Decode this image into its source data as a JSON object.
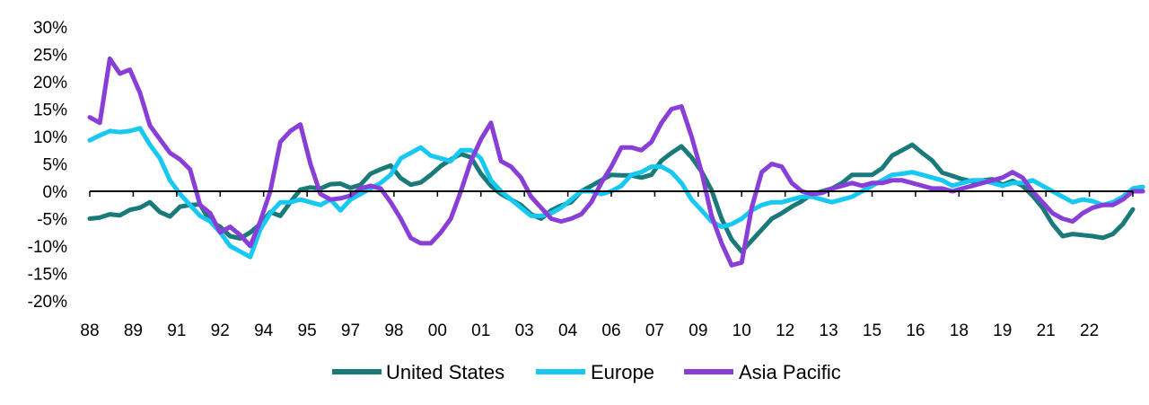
{
  "chart_data": {
    "type": "line",
    "title": "",
    "xlabel": "",
    "ylabel": "",
    "ylim": [
      -20,
      30
    ],
    "y_ticks": [
      "30%",
      "25%",
      "20%",
      "15%",
      "10%",
      "5%",
      "0%",
      "-5%",
      "-10%",
      "-15%",
      "-20%"
    ],
    "y_tick_values": [
      30,
      25,
      20,
      15,
      10,
      5,
      0,
      -5,
      -10,
      -15,
      -20
    ],
    "x_tick_labels": [
      "88",
      "89",
      "91",
      "92",
      "94",
      "95",
      "97",
      "98",
      "00",
      "01",
      "03",
      "04",
      "06",
      "07",
      "09",
      "10",
      "12",
      "13",
      "15",
      "16",
      "18",
      "19",
      "21",
      "22"
    ],
    "grid": false,
    "legend_position": "bottom",
    "zero_line": true,
    "series": [
      {
        "name": "United States",
        "color": "#1a7a7a",
        "values": [
          -5,
          -4.8,
          -4.2,
          -4.4,
          -3.4,
          -3,
          -2,
          -3.8,
          -4.6,
          -2.8,
          -2.5,
          -2.4,
          -5.5,
          -6.5,
          -8.2,
          -8.6,
          -7.5,
          -6,
          -3.8,
          -4.5,
          -2,
          0.3,
          0.7,
          0.5,
          1.3,
          1.4,
          0.6,
          1.2,
          3.2,
          4,
          4.7,
          2.4,
          1.2,
          1.6,
          3,
          4.6,
          5.8,
          6.8,
          6.2,
          3.2,
          1,
          -0.5,
          -1.5,
          -2.5,
          -4.2,
          -5,
          -3.5,
          -2.6,
          -2,
          0,
          1,
          2,
          3,
          2.9,
          2.9,
          2.5,
          3,
          5.6,
          7,
          8.2,
          6.2,
          3.6,
          0.2,
          -5,
          -8.8,
          -11,
          -9,
          -7,
          -5,
          -4,
          -2.8,
          -1.8,
          -0.5,
          0,
          0.5,
          1.5,
          3,
          3,
          3,
          4.2,
          6.5,
          7.5,
          8.5,
          7,
          5.6,
          3.4,
          2.8,
          2.2,
          1.8,
          2,
          2.2,
          1.2,
          1.9,
          1,
          -0.8,
          -3,
          -6,
          -8.2,
          -7.8,
          -8,
          -8.2,
          -8.5,
          -7.8,
          -6,
          -3.3
        ]
      },
      {
        "name": "Europe",
        "color": "#16c8f2",
        "values": [
          9.3,
          10.2,
          11,
          10.8,
          11,
          11.5,
          8.5,
          6,
          2,
          -0.5,
          -2.5,
          -4.5,
          -5.5,
          -7.5,
          -10,
          -11,
          -12,
          -7,
          -4,
          -2,
          -2,
          -1.5,
          -2,
          -2.5,
          -1.5,
          -3.5,
          -1.5,
          -0.5,
          0.5,
          1.5,
          3,
          6,
          7,
          8,
          6.5,
          6,
          5.5,
          7.5,
          7.5,
          6,
          2,
          0,
          -1.5,
          -3,
          -4.5,
          -4.5,
          -4,
          -3,
          -1.5,
          0,
          0,
          -0.5,
          0,
          1,
          3,
          3.5,
          4.5,
          4.5,
          3.5,
          1.5,
          -1.5,
          -3.5,
          -5.5,
          -6.5,
          -6,
          -5,
          -3.5,
          -2.5,
          -2,
          -2,
          -1.5,
          -1,
          -1,
          -1.5,
          -2,
          -1.5,
          -1,
          0,
          1,
          2,
          3,
          3.2,
          3.5,
          3,
          2.5,
          2,
          1,
          1.5,
          2,
          2,
          1.5,
          1,
          1.5,
          1.5,
          2,
          1,
          0,
          -1,
          -2,
          -1.5,
          -1.8,
          -2.5,
          -2,
          -1,
          0.5,
          0.8
        ]
      },
      {
        "name": "Asia Pacific",
        "color": "#8a3ed8",
        "values": [
          13.5,
          12.5,
          24.2,
          21.5,
          22.2,
          18,
          12,
          9.5,
          7,
          5.8,
          4,
          -2.5,
          -4,
          -7.5,
          -6.5,
          -8,
          -10,
          -5.5,
          0,
          9,
          11,
          12.2,
          5,
          -0.5,
          -1.5,
          -1.3,
          -0.8,
          0.5,
          1,
          0.5,
          -2,
          -5,
          -8.5,
          -9.5,
          -9.5,
          -7.5,
          -5,
          0,
          5.5,
          9.5,
          12.5,
          5.5,
          4.5,
          2.5,
          -1,
          -3,
          -5,
          -5.5,
          -5,
          -4.2,
          -2,
          1.5,
          4.5,
          8,
          8,
          7.5,
          9,
          12.5,
          15,
          15.5,
          10,
          3.5,
          -4.5,
          -9.5,
          -13.5,
          -13,
          -3,
          3.5,
          5,
          4.5,
          1.5,
          0,
          -0.5,
          -0.3,
          0.5,
          1,
          1.5,
          1,
          1.5,
          1.5,
          2,
          2,
          1.5,
          1,
          0.5,
          0.5,
          0,
          0.5,
          1,
          1.5,
          2,
          2.5,
          3.5,
          2.5,
          0,
          -2,
          -4,
          -5,
          -5.5,
          -4,
          -3,
          -2.5,
          -2.5,
          -1.5,
          0,
          0
        ]
      }
    ]
  }
}
